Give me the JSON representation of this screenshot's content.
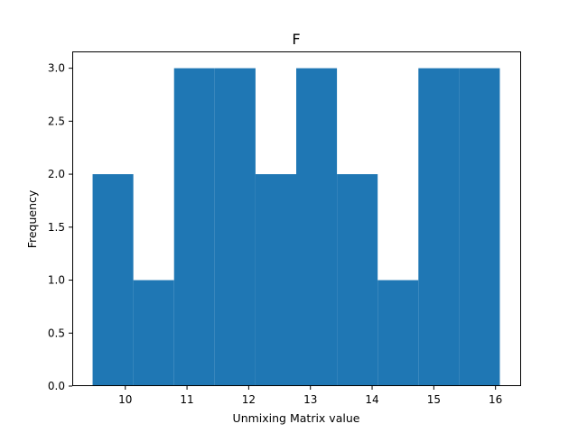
{
  "chart_data": {
    "type": "bar",
    "title": "F",
    "xlabel": "Unmixing Matrix value",
    "ylabel": "Frequency",
    "bar_color": "#1f77b4",
    "bins": [
      {
        "x0": 9.47,
        "x1": 10.13,
        "count": 2
      },
      {
        "x0": 10.13,
        "x1": 10.79,
        "count": 1
      },
      {
        "x0": 10.79,
        "x1": 11.45,
        "count": 3
      },
      {
        "x0": 11.45,
        "x1": 12.11,
        "count": 3
      },
      {
        "x0": 12.11,
        "x1": 12.77,
        "count": 2
      },
      {
        "x0": 12.77,
        "x1": 13.43,
        "count": 3
      },
      {
        "x0": 13.43,
        "x1": 14.09,
        "count": 2
      },
      {
        "x0": 14.09,
        "x1": 14.75,
        "count": 1
      },
      {
        "x0": 14.75,
        "x1": 15.41,
        "count": 3
      },
      {
        "x0": 15.41,
        "x1": 16.07,
        "count": 3
      }
    ],
    "xlim": [
      9.14,
      16.4
    ],
    "ylim": [
      0,
      3.15
    ],
    "xticks": [
      "10",
      "11",
      "12",
      "13",
      "14",
      "15",
      "16"
    ],
    "yticks": [
      "0.0",
      "0.5",
      "1.0",
      "1.5",
      "2.0",
      "2.5",
      "3.0"
    ],
    "grid": false
  }
}
